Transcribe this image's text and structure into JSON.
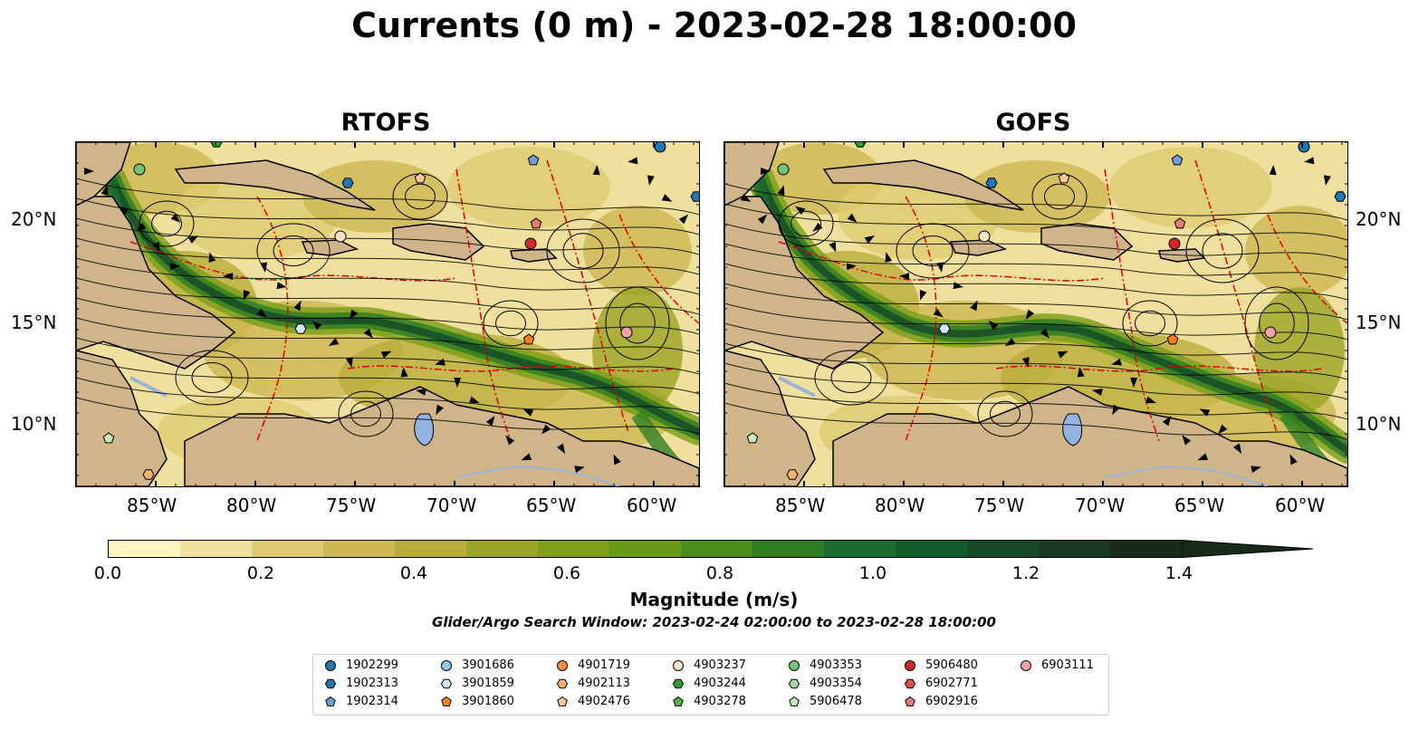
{
  "title": "Currents (0 m) - 2023-02-28 18:00:00",
  "panels": [
    {
      "name": "RTOFS"
    },
    {
      "name": "GOFS"
    }
  ],
  "lon_ticks": [
    "85°W",
    "80°W",
    "75°W",
    "70°W",
    "65°W",
    "60°W"
  ],
  "lat_ticks": [
    "20°N",
    "15°N",
    "10°N"
  ],
  "colorbar": {
    "label": "Magnitude (m/s)",
    "ticks": [
      "0.0",
      "0.2",
      "0.4",
      "0.6",
      "0.8",
      "1.0",
      "1.2",
      "1.4"
    ],
    "range": [
      0,
      1.5
    ],
    "extend": "max",
    "colors": [
      "#fdf6c0",
      "#efe19d",
      "#decb72",
      "#cdb752",
      "#b8ad3a",
      "#9ba527",
      "#80a01c",
      "#669a18",
      "#4b8d1d",
      "#2f7f22",
      "#1a6d2d",
      "#135c2b",
      "#164a28",
      "#183a22",
      "#182b1a"
    ]
  },
  "search_window": "Glider/Argo Search Window: 2023-02-24 02:00:00 to 2023-02-28 18:00:00",
  "legend": [
    {
      "id": "1902299",
      "marker": "circle",
      "color": "#1f77b4"
    },
    {
      "id": "1902313",
      "marker": "hexagon",
      "color": "#1f77b4"
    },
    {
      "id": "1902314",
      "marker": "pentagon",
      "color": "#6f9fd8"
    },
    {
      "id": "3901686",
      "marker": "circle",
      "color": "#8ec8ea"
    },
    {
      "id": "3901859",
      "marker": "hexagon",
      "color": "#cde8f6"
    },
    {
      "id": "3901860",
      "marker": "pentagon",
      "color": "#ff7f0e"
    },
    {
      "id": "4901719",
      "marker": "circle",
      "color": "#fd8d3c"
    },
    {
      "id": "4902113",
      "marker": "hexagon",
      "color": "#fdae6b"
    },
    {
      "id": "4902476",
      "marker": "pentagon",
      "color": "#fdc99a"
    },
    {
      "id": "4903237",
      "marker": "circle",
      "color": "#fde0c5"
    },
    {
      "id": "4903244",
      "marker": "hexagon",
      "color": "#2ca02c"
    },
    {
      "id": "4903278",
      "marker": "pentagon",
      "color": "#4fb04f"
    },
    {
      "id": "4903353",
      "marker": "circle",
      "color": "#74c476"
    },
    {
      "id": "4903354",
      "marker": "hexagon",
      "color": "#a1d99b"
    },
    {
      "id": "5906478",
      "marker": "pentagon",
      "color": "#c7e9c0"
    },
    {
      "id": "5906480",
      "marker": "circle",
      "color": "#d62728"
    },
    {
      "id": "6902771",
      "marker": "hexagon",
      "color": "#e04b4b"
    },
    {
      "id": "6902916",
      "marker": "pentagon",
      "color": "#e8787a"
    },
    {
      "id": "6903111",
      "marker": "circle",
      "color": "#f4a3a5"
    }
  ]
}
